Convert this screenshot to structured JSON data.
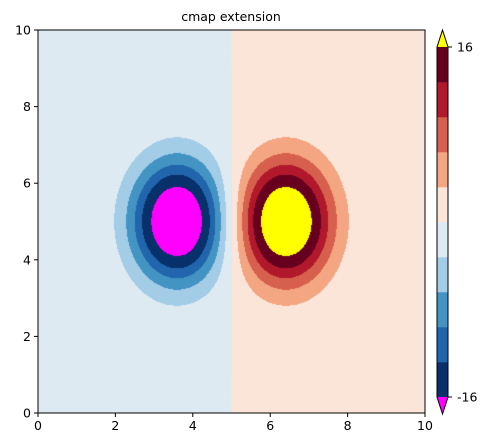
{
  "chart_data": {
    "type": "contourf",
    "title": "cmap extension",
    "xlabel": "",
    "ylabel": "",
    "xlim": [
      0,
      10
    ],
    "ylim": [
      0,
      10
    ],
    "x_ticks": [
      "0",
      "2",
      "4",
      "6",
      "8",
      "10"
    ],
    "y_ticks": [
      "0",
      "2",
      "4",
      "6",
      "8",
      "10"
    ],
    "grid": false,
    "colorbar": {
      "extend": "both",
      "range": [
        -16,
        16
      ],
      "tick_labels": [
        "16",
        "-16"
      ],
      "under_color": "#ff00ff",
      "over_color": "#ffff00",
      "levels": [
        -16,
        -12,
        -9,
        -6,
        -3,
        0,
        3,
        6,
        9,
        12,
        16
      ],
      "colors": [
        "#08306b",
        "#2166ac",
        "#4393c3",
        "#a3cce6",
        "#deeaf2",
        "#fbe5d9",
        "#f4a582",
        "#d6604d",
        "#b2182b",
        "#67001f"
      ]
    },
    "features": [
      {
        "name": "negative lobe",
        "center": [
          3.6,
          5.0
        ],
        "min_beyond": "under"
      },
      {
        "name": "positive lobe",
        "center": [
          6.4,
          5.0
        ],
        "max_beyond": "over"
      }
    ]
  }
}
